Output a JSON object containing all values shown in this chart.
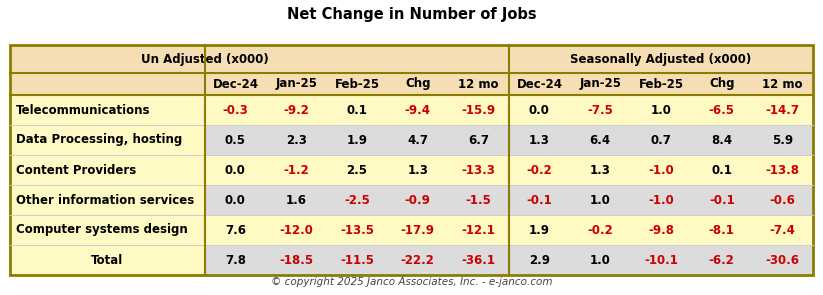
{
  "title": "Net Change in Number of Jobs",
  "copyright": "© copyright 2025 Janco Associates, Inc. - e-janco.com",
  "col_header_groups": [
    {
      "label": "Un Adjusted (x000)"
    },
    {
      "label": "Seasonally Adjusted (x000)"
    }
  ],
  "col_headers": [
    "Dec-24",
    "Jan-25",
    "Feb-25",
    "Chg",
    "12 mo",
    "Dec-24",
    "Jan-25",
    "Feb-25",
    "Chg",
    "12 mo"
  ],
  "row_labels": [
    "Telecommunications",
    "Data Processing, hosting",
    "Content Providers",
    "Other information services",
    "Computer systems design",
    "Total"
  ],
  "row_label_align": [
    "left",
    "left",
    "left",
    "left",
    "left",
    "center"
  ],
  "data": [
    [
      "-0.3",
      "-9.2",
      "0.1",
      "-9.4",
      "-15.9",
      "0.0",
      "-7.5",
      "1.0",
      "-6.5",
      "-14.7"
    ],
    [
      "0.5",
      "2.3",
      "1.9",
      "4.7",
      "6.7",
      "1.3",
      "6.4",
      "0.7",
      "8.4",
      "5.9"
    ],
    [
      "0.0",
      "-1.2",
      "2.5",
      "1.3",
      "-13.3",
      "-0.2",
      "1.3",
      "-1.0",
      "0.1",
      "-13.8"
    ],
    [
      "0.0",
      "1.6",
      "-2.5",
      "-0.9",
      "-1.5",
      "-0.1",
      "1.0",
      "-1.0",
      "-0.1",
      "-0.6"
    ],
    [
      "7.6",
      "-12.0",
      "-13.5",
      "-17.9",
      "-12.1",
      "1.9",
      "-0.2",
      "-9.8",
      "-8.1",
      "-7.4"
    ],
    [
      "7.8",
      "-18.5",
      "-11.5",
      "-22.2",
      "-36.1",
      "2.9",
      "1.0",
      "-10.1",
      "-6.2",
      "-30.6"
    ]
  ],
  "row_bg_yellow": "#FFF9C4",
  "row_bg_gray": "#DCDCDC",
  "header_bg_color": "#F5DEB3",
  "negative_color": "#CC0000",
  "positive_color": "#000000",
  "border_color": "#8B7D00",
  "divider_color": "#8B7D00",
  "thin_line_color": "#CCCCCC",
  "title_fontsize": 10.5,
  "header_fontsize": 8.5,
  "data_fontsize": 8.5,
  "label_fontsize": 8.5,
  "copyright_fontsize": 7.5
}
